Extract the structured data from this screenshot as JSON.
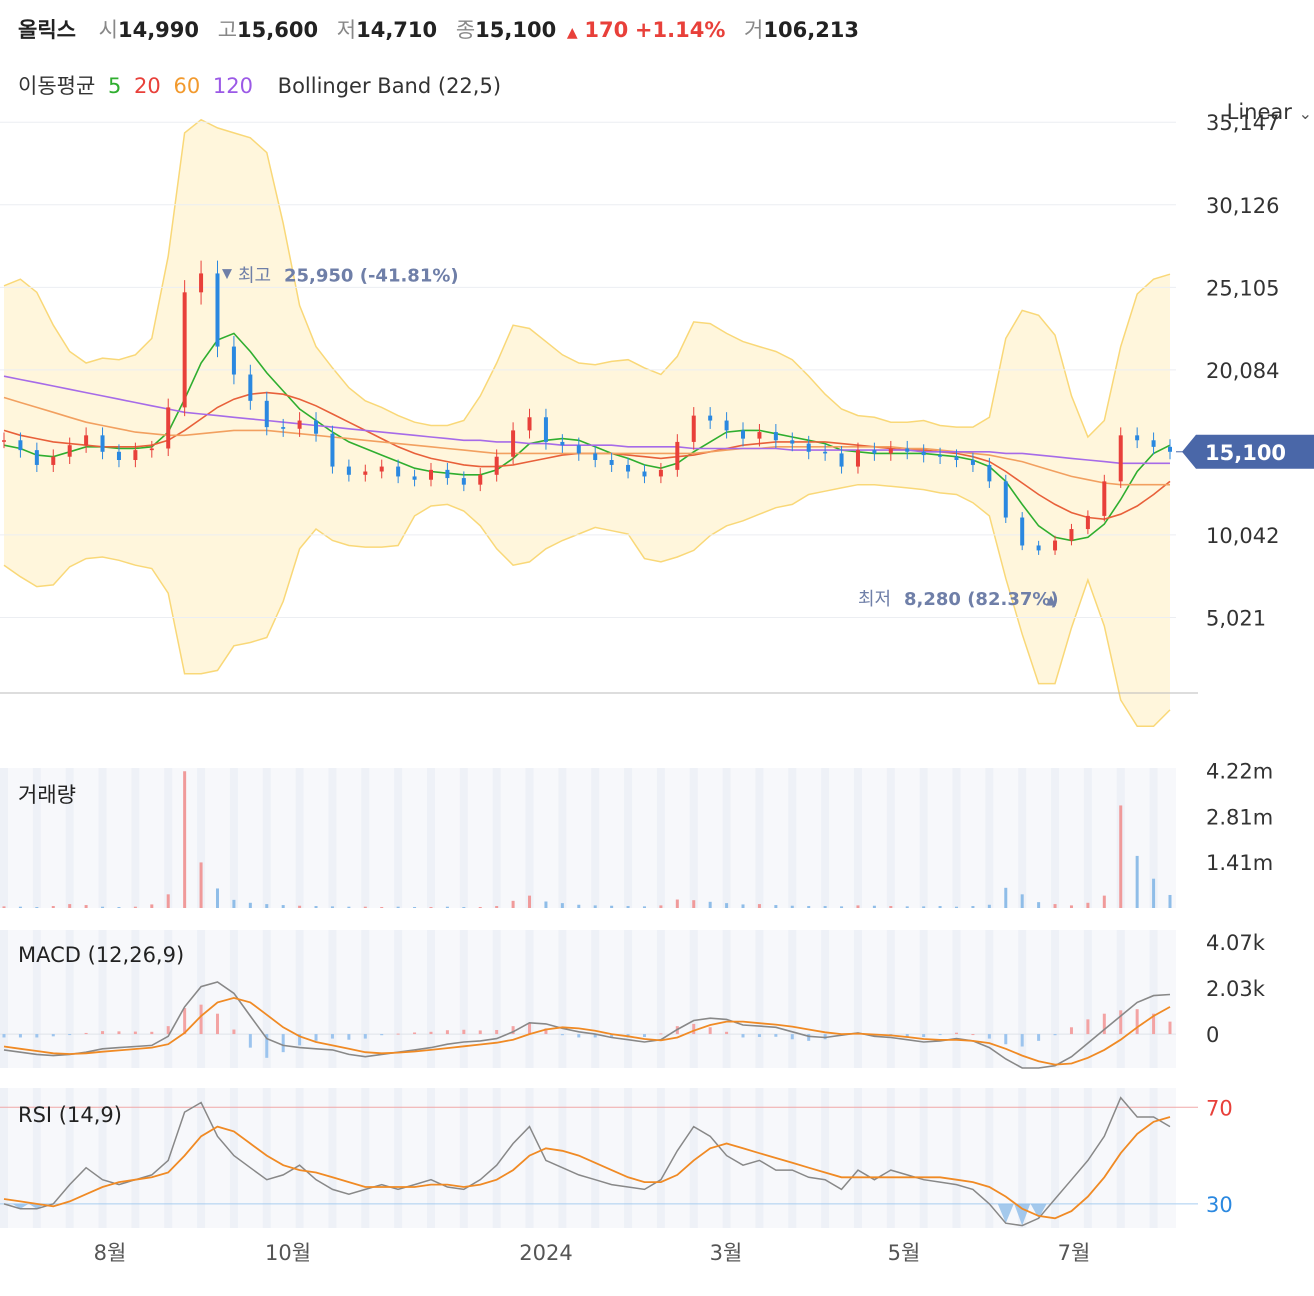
{
  "header": {
    "name": "올릭스",
    "open_label": "시",
    "open": "14,990",
    "high_label": "고",
    "high": "15,600",
    "low_label": "저",
    "low": "14,710",
    "close_label": "종",
    "close": "15,100",
    "change_arrow": "▲",
    "change": "170",
    "change_pct": "+1.14%",
    "volume_label": "거",
    "volume": "106,213"
  },
  "indicators": {
    "ma_label": "이동평균",
    "ma_periods": [
      {
        "label": "5",
        "color": "#2fae2f"
      },
      {
        "label": "20",
        "color": "#e8403a"
      },
      {
        "label": "60",
        "color": "#f29a2e"
      },
      {
        "label": "120",
        "color": "#9b59e6"
      }
    ],
    "bollinger_label": "Bollinger Band (22,5)"
  },
  "scale_mode": "Linear",
  "colors": {
    "up": "#e8403a",
    "down": "#2a88e0",
    "bb_fill": "#fff6dc",
    "bb_line": "#f9d878",
    "ma5": "#2fae2f",
    "ma20": "#e8603a",
    "ma60": "#f2a060",
    "ma120": "#a66be8",
    "macd": "#888888",
    "signal": "#f08a24",
    "current_tag": "#4a67a8"
  },
  "chart_data": [
    {
      "type": "candlestick",
      "title": "올릭스",
      "y_ticks": [
        "35,147",
        "30,126",
        "25,105",
        "20,084",
        "10,042",
        "5,021"
      ],
      "y_tick_values": [
        35147,
        30126,
        25105,
        20084,
        10042,
        5021
      ],
      "ylim": [
        0,
        36500
      ],
      "x_ticks": [
        "8월",
        "10월",
        "2024",
        "3월",
        "5월",
        "7월"
      ],
      "current_price": {
        "label": "15,100",
        "value": 15100
      },
      "annotations": {
        "high": {
          "prefix": "▼",
          "label": "최고",
          "value": "25,950 (-41.81%)",
          "price": 25950
        },
        "low": {
          "label": "최저",
          "value": "8,280 (82.37%)",
          "suffix": "▲",
          "price": 8280
        }
      },
      "close_series": [
        15800,
        15200,
        14300,
        14800,
        15500,
        16100,
        15100,
        14600,
        15200,
        15300,
        17800,
        24800,
        25950,
        21500,
        19800,
        18200,
        16600,
        16500,
        17000,
        16200,
        14200,
        13700,
        13900,
        14200,
        13600,
        13400,
        14000,
        13500,
        13100,
        13700,
        14800,
        16400,
        17200,
        15700,
        15500,
        15000,
        14600,
        14300,
        13900,
        13600,
        14000,
        15700,
        17300,
        17000,
        16400,
        15900,
        16300,
        15800,
        15600,
        15100,
        15000,
        14200,
        15200,
        15000,
        15300,
        15100,
        14900,
        14800,
        14600,
        14300,
        13300,
        11100,
        9400,
        9100,
        9700,
        10400,
        11200,
        13300,
        16100,
        15800,
        15400,
        15100
      ],
      "ma_series": [
        {
          "name": "5",
          "values": [
            15500,
            15300,
            14900,
            14800,
            15100,
            15400,
            15400,
            15300,
            15300,
            15400,
            16300,
            18300,
            20500,
            21900,
            22300,
            21200,
            19900,
            18800,
            17700,
            17000,
            16300,
            15700,
            15300,
            14900,
            14500,
            14100,
            13900,
            13800,
            13700,
            13700,
            14000,
            14700,
            15600,
            15800,
            15900,
            15800,
            15400,
            15000,
            14700,
            14300,
            14100,
            14400,
            15100,
            15700,
            16300,
            16400,
            16400,
            16200,
            16000,
            15800,
            15600,
            15200,
            15100,
            15000,
            15000,
            15000,
            15000,
            14900,
            14800,
            14600,
            14200,
            13300,
            11900,
            10600,
            9900,
            9700,
            9900,
            10700,
            12200,
            13900,
            15000,
            15500
          ]
        },
        {
          "name": "20",
          "values": [
            16400,
            16100,
            15900,
            15700,
            15600,
            15500,
            15400,
            15400,
            15400,
            15500,
            15800,
            16400,
            17100,
            17800,
            18300,
            18600,
            18700,
            18600,
            18300,
            17900,
            17400,
            16900,
            16400,
            15900,
            15400,
            15000,
            14700,
            14500,
            14300,
            14200,
            14200,
            14300,
            14500,
            14700,
            14900,
            15000,
            15000,
            15000,
            14900,
            14800,
            14700,
            14800,
            14900,
            15100,
            15300,
            15500,
            15600,
            15700,
            15700,
            15700,
            15700,
            15600,
            15500,
            15400,
            15300,
            15200,
            15200,
            15100,
            15000,
            14800,
            14500,
            13900,
            13200,
            12500,
            11900,
            11400,
            11100,
            11000,
            11300,
            11800,
            12500,
            13300
          ]
        },
        {
          "name": "60",
          "values": [
            18400,
            18100,
            17800,
            17500,
            17200,
            16900,
            16700,
            16500,
            16300,
            16200,
            16100,
            16100,
            16200,
            16300,
            16400,
            16400,
            16400,
            16300,
            16200,
            16100,
            16000,
            15900,
            15800,
            15700,
            15600,
            15500,
            15400,
            15300,
            15200,
            15100,
            15000,
            15000,
            15000,
            15000,
            15000,
            15000,
            15000,
            15000,
            15000,
            15000,
            15000,
            15000,
            15000,
            15100,
            15200,
            15300,
            15300,
            15400,
            15400,
            15400,
            15400,
            15400,
            15400,
            15400,
            15400,
            15300,
            15300,
            15200,
            15100,
            15000,
            14900,
            14700,
            14500,
            14200,
            13900,
            13600,
            13400,
            13200,
            13100,
            13100,
            13100,
            13100
          ]
        },
        {
          "name": "120",
          "values": [
            19700,
            19500,
            19300,
            19100,
            18900,
            18700,
            18500,
            18300,
            18100,
            17900,
            17700,
            17500,
            17400,
            17300,
            17200,
            17100,
            17000,
            16900,
            16800,
            16700,
            16600,
            16500,
            16400,
            16300,
            16200,
            16100,
            16000,
            15900,
            15800,
            15800,
            15700,
            15700,
            15600,
            15600,
            15500,
            15500,
            15500,
            15500,
            15400,
            15400,
            15400,
            15400,
            15300,
            15300,
            15300,
            15300,
            15300,
            15300,
            15200,
            15200,
            15200,
            15200,
            15200,
            15200,
            15200,
            15200,
            15100,
            15100,
            15100,
            15100,
            15100,
            15000,
            15000,
            14900,
            14800,
            14700,
            14600,
            14500,
            14400,
            14400,
            14400,
            14400
          ]
        }
      ],
      "bollinger_upper": [
        25200,
        25600,
        24800,
        22800,
        21200,
        20500,
        20800,
        20700,
        21000,
        22000,
        27000,
        34500,
        35300,
        34800,
        34500,
        34200,
        33300,
        29000,
        24000,
        21500,
        20200,
        19000,
        18200,
        17800,
        17300,
        16900,
        16700,
        16700,
        17000,
        18500,
        20500,
        22800,
        22600,
        21800,
        21000,
        20500,
        20400,
        20600,
        20700,
        20200,
        19800,
        20900,
        23000,
        22900,
        22300,
        21800,
        21500,
        21200,
        20700,
        19700,
        18600,
        17700,
        17300,
        17200,
        16900,
        16900,
        17000,
        16700,
        16600,
        16600,
        17200,
        22000,
        23700,
        23400,
        22200,
        18500,
        16000,
        17000,
        21500,
        24700,
        25600,
        25900
      ],
      "bollinger_lower": [
        8200,
        7500,
        6900,
        7000,
        8100,
        8600,
        8700,
        8500,
        8200,
        8000,
        6500,
        1600,
        1600,
        1800,
        3300,
        3500,
        3800,
        6000,
        9200,
        10400,
        9700,
        9400,
        9300,
        9300,
        9400,
        11200,
        11800,
        11900,
        11500,
        10600,
        9200,
        8200,
        8400,
        9200,
        9700,
        10100,
        10500,
        10300,
        10100,
        8600,
        8400,
        8700,
        9100,
        10000,
        10600,
        10900,
        11300,
        11700,
        11900,
        12500,
        12700,
        12900,
        13100,
        13100,
        13000,
        12900,
        12800,
        12600,
        12500,
        12000,
        11200,
        7400,
        4000,
        1000,
        1000,
        4400,
        7300,
        4500,
        0,
        -1600,
        -1600,
        -600
      ]
    },
    {
      "type": "bar",
      "title": "거래량",
      "y_ticks": [
        "4.22m",
        "2.81m",
        "1.41m"
      ],
      "y_tick_values": [
        4220000,
        2810000,
        1410000
      ],
      "ylim": [
        0,
        4300000
      ],
      "values": [
        50000,
        40000,
        30000,
        60000,
        120000,
        90000,
        40000,
        30000,
        40000,
        110000,
        420000,
        4200000,
        1400000,
        600000,
        250000,
        160000,
        120000,
        90000,
        70000,
        60000,
        50000,
        40000,
        40000,
        30000,
        40000,
        30000,
        30000,
        40000,
        30000,
        30000,
        60000,
        220000,
        380000,
        200000,
        150000,
        100000,
        80000,
        70000,
        60000,
        50000,
        80000,
        260000,
        240000,
        190000,
        150000,
        110000,
        120000,
        90000,
        70000,
        60000,
        60000,
        50000,
        80000,
        70000,
        60000,
        50000,
        50000,
        60000,
        40000,
        60000,
        100000,
        620000,
        420000,
        180000,
        120000,
        80000,
        160000,
        380000,
        3150000,
        1600000,
        900000,
        400000
      ]
    },
    {
      "type": "line",
      "title": "MACD (12,26,9)",
      "y_ticks": [
        "4.07k",
        "2.03k",
        "0"
      ],
      "y_tick_values": [
        4070,
        2030,
        0
      ],
      "ylim": [
        -1500,
        4600
      ],
      "series": [
        {
          "name": "MACD",
          "values": [
            -700,
            -800,
            -900,
            -950,
            -900,
            -800,
            -650,
            -600,
            -550,
            -500,
            -100,
            1200,
            2100,
            2300,
            1800,
            800,
            -200,
            -500,
            -600,
            -650,
            -700,
            -900,
            -1000,
            -900,
            -800,
            -700,
            -600,
            -450,
            -350,
            -300,
            -200,
            100,
            500,
            450,
            250,
            100,
            0,
            -150,
            -250,
            -350,
            -250,
            200,
            600,
            700,
            650,
            400,
            350,
            300,
            100,
            -100,
            -150,
            -50,
            50,
            -100,
            -150,
            -250,
            -350,
            -300,
            -200,
            -300,
            -600,
            -1100,
            -1500,
            -1500,
            -1400,
            -1000,
            -400,
            200,
            800,
            1400,
            1700,
            1750
          ]
        },
        {
          "name": "Signal",
          "values": [
            -550,
            -650,
            -750,
            -850,
            -880,
            -850,
            -780,
            -720,
            -660,
            -600,
            -450,
            50,
            800,
            1400,
            1600,
            1400,
            850,
            300,
            -100,
            -350,
            -500,
            -650,
            -800,
            -850,
            -820,
            -770,
            -700,
            -620,
            -540,
            -460,
            -380,
            -250,
            0,
            200,
            300,
            250,
            150,
            0,
            -100,
            -220,
            -280,
            -150,
            150,
            400,
            550,
            550,
            480,
            420,
            330,
            200,
            80,
            0,
            20,
            -20,
            -60,
            -130,
            -220,
            -260,
            -260,
            -300,
            -400,
            -650,
            -950,
            -1200,
            -1350,
            -1300,
            -1050,
            -700,
            -250,
            300,
            800,
            1200
          ]
        }
      ]
    },
    {
      "type": "line",
      "title": "RSI (14,9)",
      "y_ticks": [
        "70",
        "30"
      ],
      "y_tick_values": [
        70,
        30
      ],
      "ylim": [
        20,
        78
      ],
      "series": [
        {
          "name": "RSI",
          "values": [
            30,
            28,
            28,
            30,
            38,
            45,
            40,
            38,
            40,
            42,
            48,
            68,
            72,
            58,
            50,
            45,
            40,
            42,
            46,
            40,
            36,
            34,
            36,
            38,
            36,
            38,
            40,
            37,
            36,
            40,
            46,
            55,
            62,
            48,
            45,
            42,
            40,
            38,
            37,
            36,
            40,
            52,
            62,
            58,
            50,
            46,
            48,
            44,
            44,
            41,
            40,
            36,
            44,
            40,
            44,
            42,
            40,
            39,
            38,
            36,
            30,
            22,
            21,
            24,
            32,
            40,
            48,
            58,
            74,
            66,
            66,
            62
          ]
        },
        {
          "name": "Signal",
          "values": [
            32,
            31,
            30,
            29,
            31,
            34,
            37,
            39,
            40,
            41,
            43,
            50,
            58,
            62,
            60,
            55,
            50,
            46,
            44,
            43,
            41,
            39,
            37,
            37,
            37,
            37,
            38,
            38,
            37,
            38,
            40,
            44,
            50,
            53,
            52,
            50,
            47,
            44,
            41,
            39,
            39,
            42,
            48,
            53,
            55,
            53,
            51,
            49,
            47,
            45,
            43,
            41,
            41,
            41,
            41,
            41,
            41,
            41,
            40,
            39,
            37,
            33,
            28,
            25,
            24,
            27,
            33,
            41,
            51,
            59,
            64,
            66
          ]
        }
      ]
    }
  ]
}
